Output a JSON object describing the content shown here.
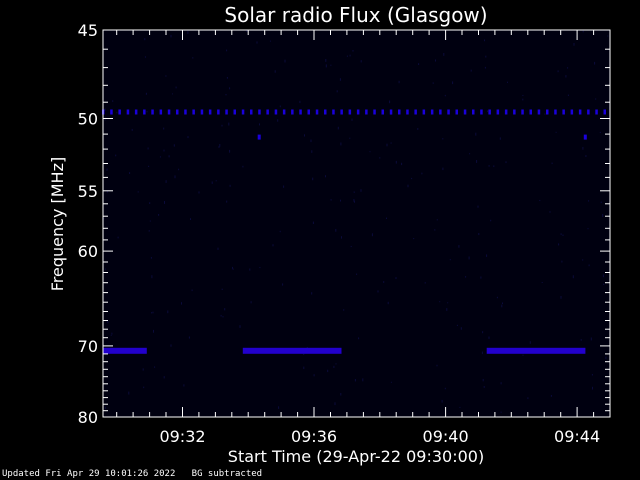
{
  "chart_data": {
    "type": "heatmap",
    "title": "Solar radio Flux (Glasgow)",
    "ylabel": "Frequency [MHz]",
    "xlabel": "Start Time (29-Apr-22 09:30:00)",
    "y_scale": "reciprocal (frequency increases downward)",
    "ylim": [
      45,
      80
    ],
    "y_ticks": [
      {
        "value": 45,
        "label": "45"
      },
      {
        "value": 50,
        "label": "50"
      },
      {
        "value": 55,
        "label": "55"
      },
      {
        "value": 60,
        "label": "60"
      },
      {
        "value": 70,
        "label": "70"
      },
      {
        "value": 80,
        "label": "80"
      }
    ],
    "xlim": [
      "09:29:35",
      "09:45:00"
    ],
    "x_ticks": [
      {
        "value": "09:32",
        "label": "09:32"
      },
      {
        "value": "09:36",
        "label": "09:36"
      },
      {
        "value": "09:40",
        "label": "09:40"
      },
      {
        "value": "09:44",
        "label": "09:44"
      }
    ],
    "series": [
      {
        "kind": "continuous band",
        "frequency_mhz": 70.6,
        "intervals": [
          {
            "start": "09:29:35",
            "end": "09:30:55"
          },
          {
            "start": "09:33:50",
            "end": "09:36:50"
          },
          {
            "start": "09:41:15",
            "end": "09:44:15"
          }
        ]
      },
      {
        "kind": "periodic dots",
        "frequency_mhz": 49.6,
        "start": "09:29:35",
        "end": "09:45:00",
        "period_seconds": 15
      },
      {
        "kind": "isolated dots",
        "frequency_mhz": 51.2,
        "times": [
          "09:34:20",
          "09:44:15"
        ]
      }
    ],
    "colors": {
      "background": "#000000",
      "plot_bg": "#000010",
      "signal": "#2200cc",
      "dots": "#1a00dd",
      "axes": "#ffffff"
    }
  },
  "footer": {
    "updated": "Updated Fri Apr 29 10:01:26 2022",
    "mode": "BG subtracted"
  }
}
